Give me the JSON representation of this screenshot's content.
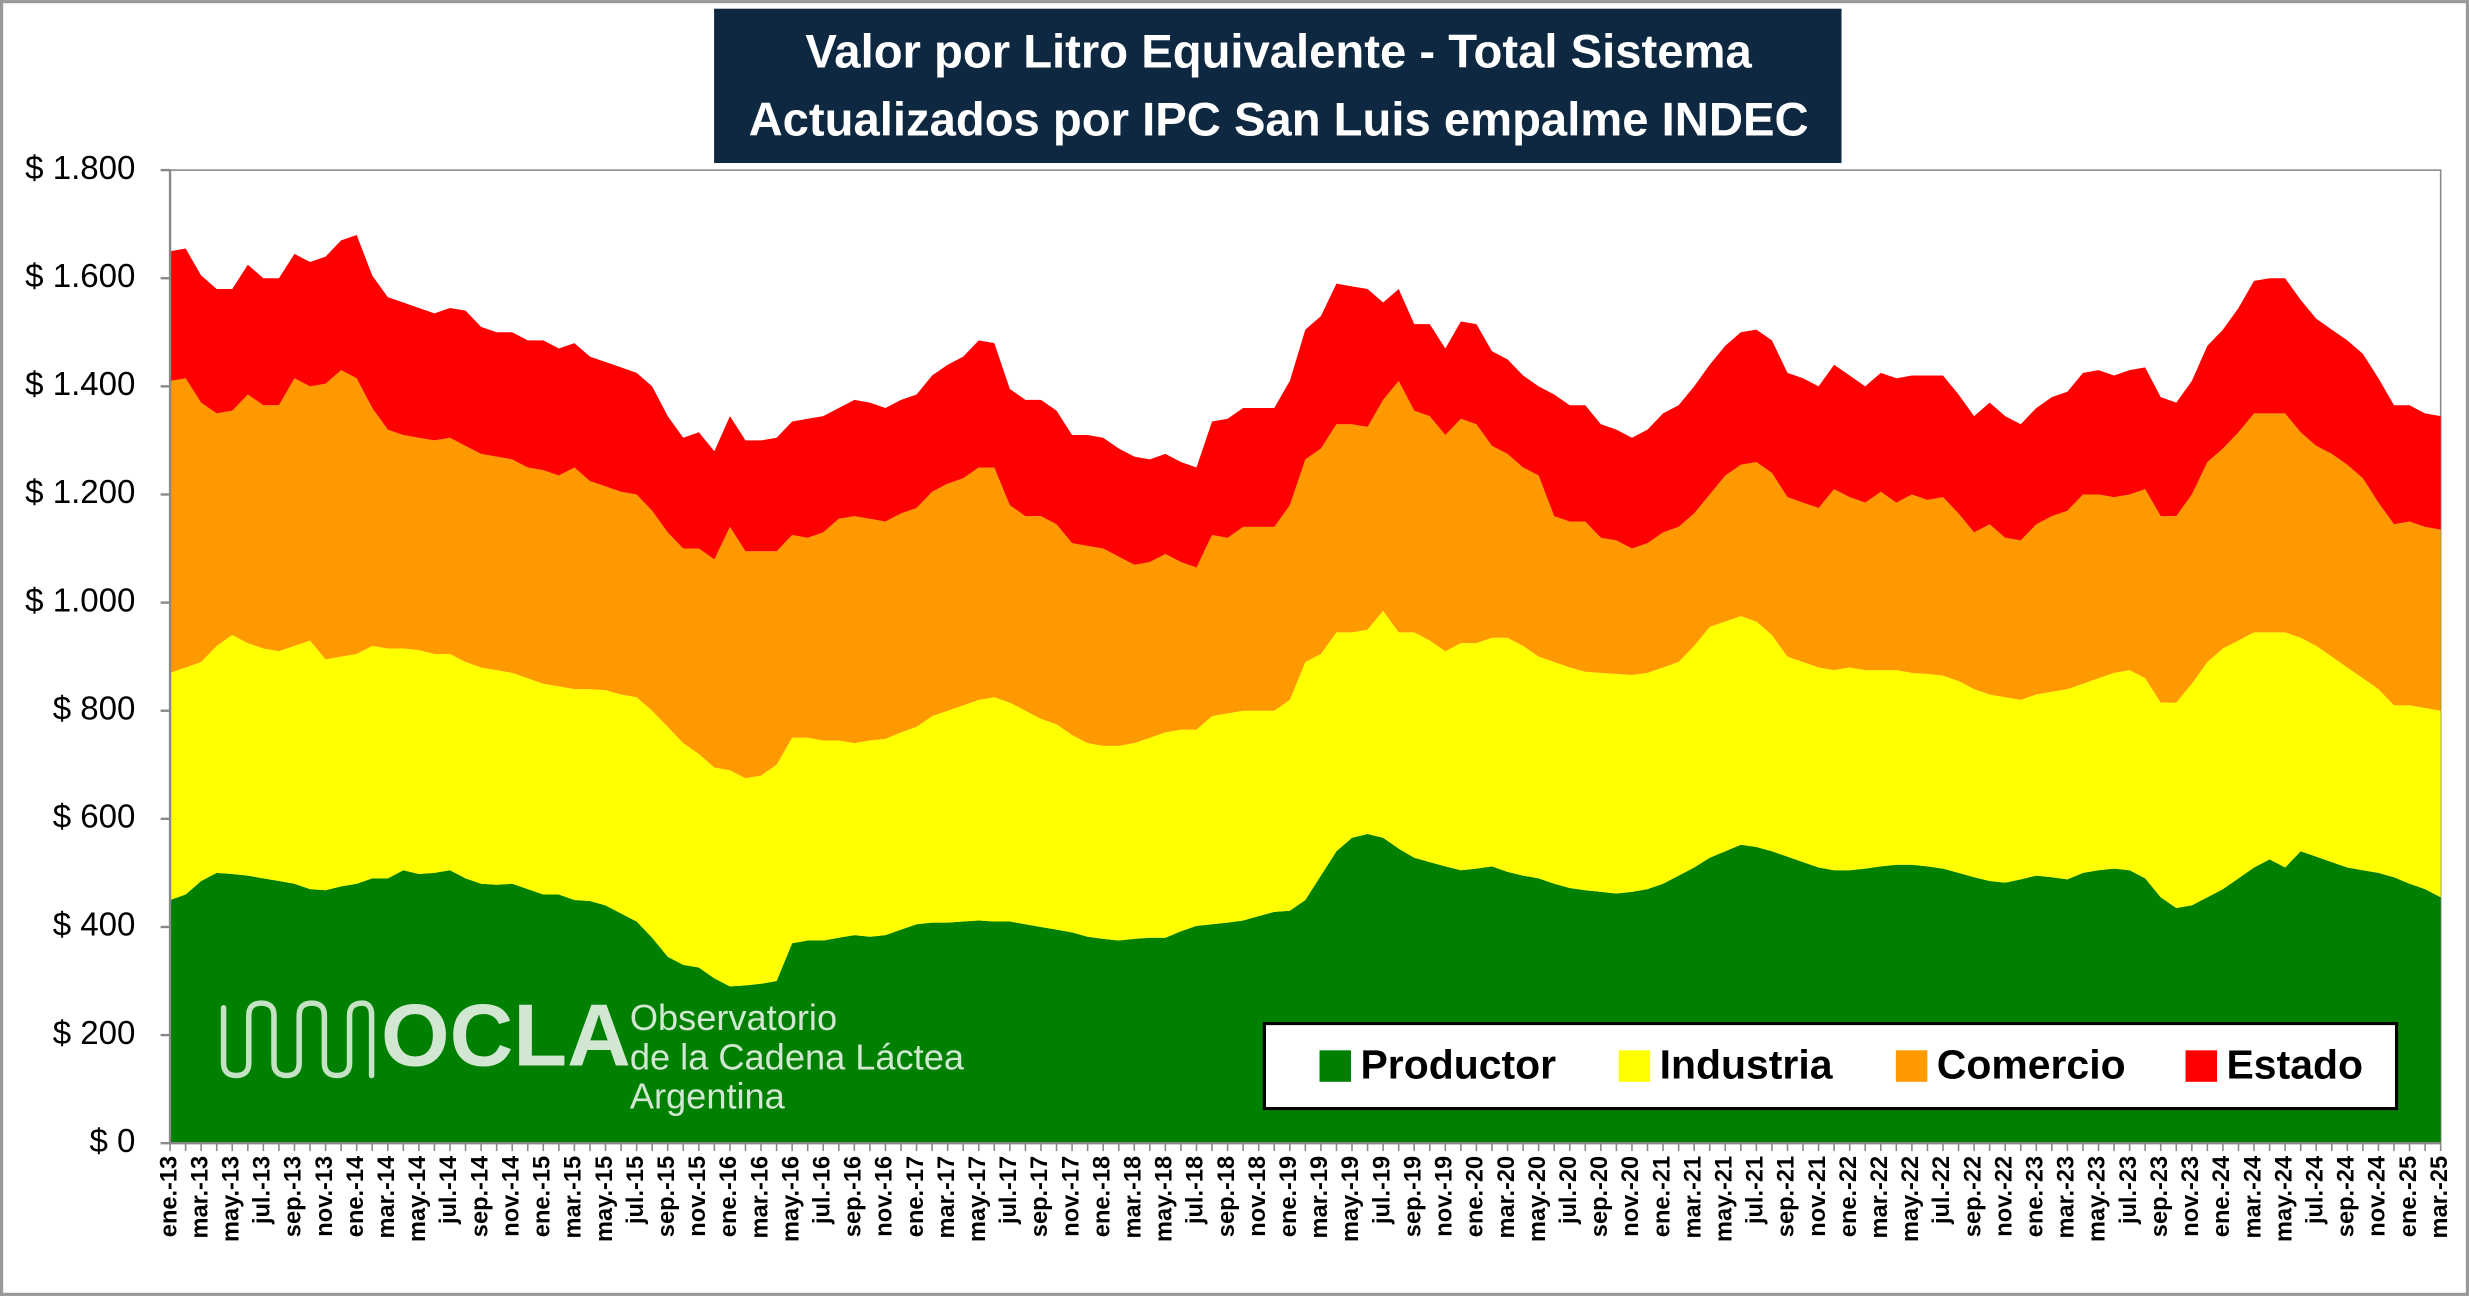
{
  "chart_data": {
    "type": "stacked_area",
    "title": "Valor por Litro Equivalente - Total Sistema",
    "subtitle": "Actualizados por IPC San Luis empalme INDEC",
    "logo": {
      "name": "OCLA",
      "line1": "Observatorio",
      "line2": "de la Cadena Láctea",
      "line3": "Argentina"
    },
    "legend": "lower right",
    "categories": [
      "ene.-13",
      null,
      "mar.-13",
      null,
      "may.-13",
      null,
      "jul.-13",
      null,
      "sep.-13",
      null,
      "nov.-13",
      null,
      "ene.-14",
      null,
      "mar.-14",
      null,
      "may.-14",
      null,
      "jul.-14",
      null,
      "sep.-14",
      null,
      "nov.-14",
      null,
      "ene.-15",
      null,
      "mar.-15",
      null,
      "may.-15",
      null,
      "jul.-15",
      null,
      "sep.-15",
      null,
      "nov.-15",
      null,
      "ene.-16",
      null,
      "mar.-16",
      null,
      "may.-16",
      null,
      "jul.-16",
      null,
      "sep.-16",
      null,
      "nov.-16",
      null,
      "ene.-17",
      null,
      "mar.-17",
      null,
      "may.-17",
      null,
      "jul.-17",
      null,
      "sep.-17",
      null,
      "nov.-17",
      null,
      "ene.-18",
      null,
      "mar.-18",
      null,
      "may.-18",
      null,
      "jul.-18",
      null,
      "sep.-18",
      null,
      "nov.-18",
      null,
      "ene.-19",
      null,
      "mar.-19",
      null,
      "may.-19",
      null,
      "jul.-19",
      null,
      "sep.-19",
      null,
      "nov.-19",
      null,
      "ene.-20",
      null,
      "mar.-20",
      null,
      "may.-20",
      null,
      "jul.-20",
      null,
      "sep.-20",
      null,
      "nov.-20",
      null,
      "ene.-21",
      null,
      "mar.-21",
      null,
      "may.-21",
      null,
      "jul.-21",
      null,
      "sep.-21",
      null,
      "nov.-21",
      null,
      "ene.-22",
      null,
      "mar.-22",
      null,
      "may.-22",
      null,
      "jul.-22",
      null,
      "sep.-22",
      null,
      "nov.-22",
      null,
      "ene.-23",
      null,
      "mar.-23",
      null,
      "may.-23",
      null,
      "jul.-23",
      null,
      "sep.-23",
      null,
      "nov.-23",
      null,
      "ene.-24",
      null,
      "mar.-24",
      null,
      "may.-24",
      null,
      "jul.-24",
      null,
      "sep.-24",
      null,
      "nov.-24",
      null,
      "ene.-25",
      null,
      "mar.-25"
    ],
    "series": [
      {
        "name": "Productor",
        "color": "#008000",
        "values": [
          450,
          460,
          485,
          500,
          498,
          495,
          490,
          485,
          480,
          470,
          468,
          475,
          480,
          490,
          490,
          505,
          498,
          500,
          505,
          490,
          480,
          478,
          480,
          470,
          460,
          460,
          450,
          448,
          440,
          425,
          410,
          380,
          345,
          330,
          325,
          305,
          290,
          292,
          295,
          300,
          370,
          375,
          375,
          380,
          385,
          382,
          385,
          395,
          405,
          408,
          408,
          410,
          412,
          410,
          410,
          405,
          400,
          395,
          390,
          382,
          378,
          375,
          378,
          380,
          380,
          392,
          402,
          405,
          408,
          412,
          420,
          428,
          430,
          450,
          495,
          540,
          565,
          572,
          565,
          545,
          528,
          520,
          512,
          505,
          508,
          512,
          502,
          495,
          490,
          480,
          472,
          468,
          465,
          462,
          465,
          470,
          480,
          495,
          510,
          528,
          540,
          552,
          548,
          540,
          530,
          520,
          510,
          505,
          505,
          508,
          512,
          515,
          515,
          512,
          508,
          500,
          492,
          485,
          482,
          488,
          495,
          492,
          488,
          500,
          505,
          508,
          505,
          490,
          455,
          435,
          440,
          455,
          470,
          490,
          510,
          525,
          510,
          540,
          530,
          520,
          510,
          505,
          500,
          492,
          480,
          470,
          455
        ]
      },
      {
        "name": "Industria",
        "color": "#ffff00",
        "values": [
          420,
          420,
          405,
          420,
          442,
          430,
          425,
          425,
          440,
          460,
          427,
          425,
          425,
          430,
          425,
          410,
          414,
          405,
          400,
          400,
          400,
          397,
          390,
          390,
          390,
          385,
          390,
          392,
          398,
          405,
          415,
          420,
          425,
          410,
          395,
          390,
          400,
          383,
          385,
          400,
          380,
          375,
          370,
          365,
          355,
          363,
          363,
          365,
          365,
          382,
          392,
          400,
          408,
          415,
          405,
          395,
          385,
          380,
          365,
          358,
          357,
          360,
          362,
          370,
          380,
          373,
          363,
          385,
          387,
          388,
          380,
          372,
          390,
          440,
          410,
          405,
          380,
          378,
          420,
          400,
          417,
          410,
          398,
          420,
          417,
          423,
          433,
          425,
          410,
          410,
          408,
          404,
          405,
          406,
          401,
          400,
          400,
          395,
          410,
          427,
          425,
          423,
          417,
          400,
          370,
          370,
          370,
          370,
          375,
          367,
          363,
          360,
          355,
          356,
          357,
          355,
          348,
          345,
          343,
          332,
          335,
          343,
          352,
          350,
          355,
          362,
          370,
          370,
          360,
          380,
          410,
          435,
          445,
          440,
          435,
          420,
          435,
          395,
          390,
          380,
          370,
          355,
          340,
          318,
          330,
          335,
          345
        ]
      },
      {
        "name": "Comercio",
        "color": "#ff9900",
        "values": [
          540,
          535,
          480,
          430,
          415,
          460,
          450,
          455,
          495,
          470,
          510,
          530,
          510,
          440,
          405,
          395,
          393,
          395,
          400,
          400,
          395,
          395,
          395,
          390,
          395,
          390,
          410,
          385,
          377,
          375,
          375,
          370,
          360,
          360,
          380,
          385,
          450,
          420,
          415,
          395,
          375,
          370,
          385,
          410,
          420,
          410,
          402,
          405,
          405,
          415,
          420,
          420,
          430,
          425,
          365,
          360,
          375,
          370,
          355,
          365,
          365,
          350,
          330,
          325,
          330,
          310,
          300,
          335,
          325,
          340,
          340,
          340,
          360,
          375,
          380,
          385,
          385,
          375,
          390,
          465,
          410,
          415,
          400,
          415,
          405,
          355,
          340,
          330,
          335,
          270,
          270,
          278,
          250,
          247,
          234,
          240,
          250,
          250,
          245,
          245,
          270,
          280,
          295,
          300,
          295,
          295,
          295,
          335,
          315,
          310,
          330,
          310,
          330,
          322,
          330,
          310,
          290,
          315,
          295,
          295,
          315,
          325,
          330,
          350,
          340,
          325,
          325,
          350,
          345,
          345,
          350,
          370,
          370,
          385,
          405,
          405,
          405,
          380,
          370,
          375,
          375,
          370,
          345,
          335,
          340,
          335,
          335
        ]
      },
      {
        "name": "Estado",
        "color": "#ff0000",
        "values": [
          240,
          240,
          235,
          230,
          225,
          240,
          235,
          235,
          230,
          230,
          235,
          240,
          265,
          245,
          245,
          245,
          240,
          235,
          240,
          250,
          235,
          230,
          235,
          235,
          240,
          235,
          230,
          230,
          230,
          230,
          225,
          230,
          215,
          205,
          215,
          200,
          205,
          205,
          205,
          210,
          210,
          220,
          215,
          205,
          215,
          215,
          210,
          210,
          210,
          215,
          220,
          225,
          235,
          230,
          215,
          215,
          215,
          210,
          200,
          205,
          205,
          200,
          200,
          190,
          185,
          185,
          185,
          210,
          220,
          220,
          220,
          220,
          230,
          240,
          245,
          260,
          255,
          255,
          180,
          170,
          160,
          170,
          160,
          180,
          185,
          175,
          175,
          170,
          165,
          225,
          215,
          215,
          210,
          205,
          205,
          210,
          220,
          225,
          235,
          240,
          240,
          245,
          245,
          245,
          230,
          230,
          225,
          230,
          225,
          215,
          220,
          230,
          220,
          230,
          225,
          220,
          215,
          225,
          225,
          215,
          215,
          220,
          220,
          225,
          230,
          225,
          230,
          225,
          220,
          210,
          210,
          215,
          220,
          230,
          245,
          250,
          250,
          245,
          235,
          230,
          230,
          230,
          230,
          220,
          215,
          210,
          210
        ]
      }
    ],
    "ylim": [
      0,
      1800
    ],
    "yticks": [
      {
        "value": 0,
        "label": "$ 0"
      },
      {
        "value": 200,
        "label": "$ 200"
      },
      {
        "value": 400,
        "label": "$ 400"
      },
      {
        "value": 600,
        "label": "$ 600"
      },
      {
        "value": 800,
        "label": "$ 800"
      },
      {
        "value": 1000,
        "label": "$ 1.000"
      },
      {
        "value": 1200,
        "label": "$ 1.200"
      },
      {
        "value": 1400,
        "label": "$ 1.400"
      },
      {
        "value": 1600,
        "label": "$ 1.600"
      },
      {
        "value": 1800,
        "label": "$ 1.800"
      }
    ]
  }
}
